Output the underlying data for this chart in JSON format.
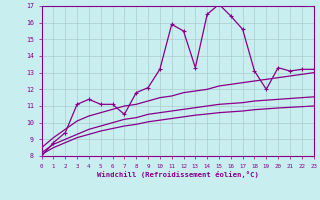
{
  "xlabel": "Windchill (Refroidissement éolien,°C)",
  "xlim": [
    0,
    23
  ],
  "ylim": [
    8,
    17
  ],
  "yticks": [
    8,
    9,
    10,
    11,
    12,
    13,
    14,
    15,
    16,
    17
  ],
  "xticks": [
    0,
    1,
    2,
    3,
    4,
    5,
    6,
    7,
    8,
    9,
    10,
    11,
    12,
    13,
    14,
    15,
    16,
    17,
    18,
    19,
    20,
    21,
    22,
    23
  ],
  "bg_color": "#c8eef0",
  "line_color": "#880088",
  "grid_color": "#aacccc",
  "line1_x": [
    0,
    1,
    2,
    3,
    4,
    5,
    6,
    7,
    8,
    9,
    10,
    11,
    12,
    13,
    14,
    15,
    16,
    17,
    18,
    19,
    20,
    21,
    22,
    23
  ],
  "line1_y": [
    8.0,
    8.8,
    9.4,
    11.1,
    11.4,
    11.1,
    11.1,
    10.5,
    11.8,
    12.1,
    13.2,
    15.9,
    15.5,
    13.3,
    16.5,
    17.1,
    16.4,
    15.6,
    13.1,
    12.0,
    13.3,
    13.1,
    13.2,
    13.2
  ],
  "line2_x": [
    0,
    1,
    2,
    3,
    4,
    5,
    6,
    7,
    8,
    9,
    10,
    11,
    12,
    13,
    14,
    15,
    16,
    17,
    18,
    19,
    20,
    21,
    22,
    23
  ],
  "line2_y": [
    8.5,
    9.1,
    9.6,
    10.1,
    10.4,
    10.6,
    10.8,
    11.0,
    11.1,
    11.3,
    11.5,
    11.6,
    11.8,
    11.9,
    12.0,
    12.2,
    12.3,
    12.4,
    12.5,
    12.6,
    12.7,
    12.8,
    12.9,
    13.0
  ],
  "line3_x": [
    0,
    1,
    2,
    3,
    4,
    5,
    6,
    7,
    8,
    9,
    10,
    11,
    12,
    13,
    14,
    15,
    16,
    17,
    18,
    19,
    20,
    21,
    22,
    23
  ],
  "line3_y": [
    8.2,
    8.7,
    9.0,
    9.3,
    9.6,
    9.8,
    10.0,
    10.2,
    10.3,
    10.5,
    10.6,
    10.7,
    10.8,
    10.9,
    11.0,
    11.1,
    11.15,
    11.2,
    11.3,
    11.35,
    11.4,
    11.45,
    11.5,
    11.55
  ],
  "line4_x": [
    0,
    1,
    2,
    3,
    4,
    5,
    6,
    7,
    8,
    9,
    10,
    11,
    12,
    13,
    14,
    15,
    16,
    17,
    18,
    19,
    20,
    21,
    22,
    23
  ],
  "line4_y": [
    8.1,
    8.5,
    8.8,
    9.1,
    9.3,
    9.5,
    9.65,
    9.8,
    9.9,
    10.05,
    10.15,
    10.25,
    10.35,
    10.45,
    10.52,
    10.6,
    10.65,
    10.7,
    10.78,
    10.83,
    10.88,
    10.92,
    10.96,
    11.0
  ]
}
